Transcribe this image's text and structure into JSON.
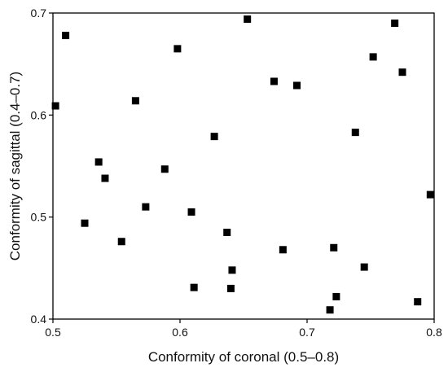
{
  "chart_data": {
    "type": "scatter",
    "title": "",
    "xlabel": "Conformity of coronal (0.5–0.8)",
    "ylabel": "Conformity of sagittal (0.4–0.7)",
    "xlim": [
      0.5,
      0.8
    ],
    "ylim": [
      0.4,
      0.7
    ],
    "x_ticks": [
      "0.5",
      "0.6",
      "0.7",
      "0.8"
    ],
    "y_ticks": [
      "0.4",
      "0.5",
      "0.6",
      "0.7"
    ],
    "grid": false,
    "legend": "none",
    "marker": "square",
    "color": "#000000",
    "points": [
      {
        "x": 0.51,
        "y": 0.678
      },
      {
        "x": 0.502,
        "y": 0.609
      },
      {
        "x": 0.525,
        "y": 0.494
      },
      {
        "x": 0.536,
        "y": 0.554
      },
      {
        "x": 0.541,
        "y": 0.538
      },
      {
        "x": 0.554,
        "y": 0.476
      },
      {
        "x": 0.565,
        "y": 0.614
      },
      {
        "x": 0.573,
        "y": 0.51
      },
      {
        "x": 0.588,
        "y": 0.547
      },
      {
        "x": 0.598,
        "y": 0.665
      },
      {
        "x": 0.609,
        "y": 0.505
      },
      {
        "x": 0.611,
        "y": 0.431
      },
      {
        "x": 0.627,
        "y": 0.579
      },
      {
        "x": 0.637,
        "y": 0.485
      },
      {
        "x": 0.64,
        "y": 0.43
      },
      {
        "x": 0.641,
        "y": 0.448
      },
      {
        "x": 0.653,
        "y": 0.694
      },
      {
        "x": 0.674,
        "y": 0.633
      },
      {
        "x": 0.681,
        "y": 0.468
      },
      {
        "x": 0.692,
        "y": 0.629
      },
      {
        "x": 0.718,
        "y": 0.409
      },
      {
        "x": 0.721,
        "y": 0.47
      },
      {
        "x": 0.723,
        "y": 0.422
      },
      {
        "x": 0.738,
        "y": 0.583
      },
      {
        "x": 0.745,
        "y": 0.451
      },
      {
        "x": 0.752,
        "y": 0.657
      },
      {
        "x": 0.769,
        "y": 0.69
      },
      {
        "x": 0.775,
        "y": 0.642
      },
      {
        "x": 0.787,
        "y": 0.417
      },
      {
        "x": 0.797,
        "y": 0.522
      }
    ]
  }
}
